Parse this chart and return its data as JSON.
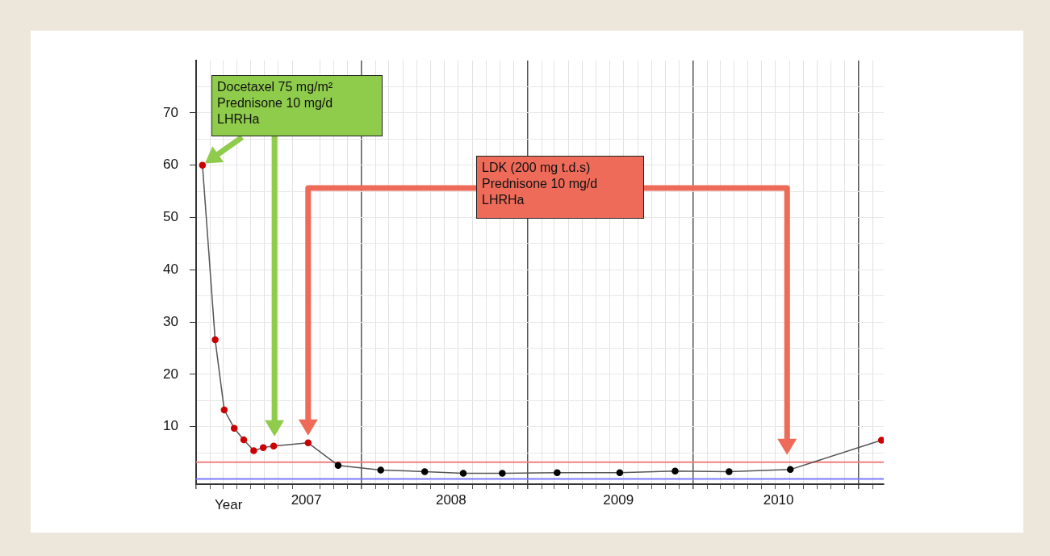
{
  "chart_data": {
    "type": "line",
    "xlabel": "Year",
    "x": [
      "2007-01-15",
      "2007-02-12",
      "2007-03-04",
      "2007-03-26",
      "2007-04-16",
      "2007-05-08",
      "2007-05-29",
      "2007-06-21",
      "2007-09-05",
      "2007-11-10",
      "2008-02-12",
      "2008-05-19",
      "2008-08-12",
      "2008-11-06",
      "2009-03-07",
      "2009-07-23",
      "2009-11-22",
      "2010-03-21",
      "2010-08-03",
      "2011-02-20"
    ],
    "values": [
      60,
      26.6,
      13.2,
      9.7,
      7.5,
      5.4,
      6.0,
      6.3,
      6.9,
      2.6,
      1.7,
      1.4,
      1.1,
      1.1,
      1.2,
      1.2,
      1.5,
      1.4,
      1.8,
      7.4
    ],
    "color": "#555555",
    "colors": [
      "#cc0000",
      "#cc0000",
      "#cc0000",
      "#cc0000",
      "#cc0000",
      "#cc0000",
      "#cc0000",
      "#cc0000",
      "#cc0000",
      "#000000",
      "#000000",
      "#000000",
      "#000000",
      "#000000",
      "#000000",
      "#000000",
      "#000000",
      "#000000",
      "#000000",
      "#cc0000"
    ],
    "marker": "circle",
    "line_style": "solid",
    "grid": true,
    "legend": false,
    "xlim": [
      "2007-01-01",
      "2011-02-25"
    ],
    "xticks": [
      {
        "value": "2007-01-01",
        "label": null
      },
      {
        "value": "2007-02-01",
        "label": null
      },
      {
        "value": "2007-03-01",
        "label": null
      },
      {
        "value": "2007-04-01",
        "label": null
      },
      {
        "value": "2007-05-01",
        "label": null
      },
      {
        "value": "2007-06-01",
        "label": null
      },
      {
        "value": "2007-07-01",
        "label": null
      },
      {
        "value": "2007-08-01",
        "label": null
      },
      {
        "value": "2007-09-01",
        "label": "2007"
      },
      {
        "value": "2007-10-01",
        "label": null
      },
      {
        "value": "2007-11-01",
        "label": null
      },
      {
        "value": "2007-12-01",
        "label": null
      },
      {
        "value": "2008-01-01",
        "label": null
      },
      {
        "value": "2008-02-01",
        "label": null
      },
      {
        "value": "2008-03-01",
        "label": null
      },
      {
        "value": "2008-04-01",
        "label": null
      },
      {
        "value": "2008-05-01",
        "label": null
      },
      {
        "value": "2008-06-01",
        "label": null
      },
      {
        "value": "2008-07-01",
        "label": null
      },
      {
        "value": "2008-07-16",
        "label": "2008"
      },
      {
        "value": "2008-08-01",
        "label": null
      },
      {
        "value": "2008-09-01",
        "label": null
      },
      {
        "value": "2008-10-01",
        "label": null
      },
      {
        "value": "2008-11-01",
        "label": null
      },
      {
        "value": "2008-12-01",
        "label": null
      },
      {
        "value": "2009-01-01",
        "label": null
      },
      {
        "value": "2009-02-01",
        "label": null
      },
      {
        "value": "2009-03-01",
        "label": null
      },
      {
        "value": "2009-04-01",
        "label": null
      },
      {
        "value": "2009-05-01",
        "label": null
      },
      {
        "value": "2009-06-01",
        "label": null
      },
      {
        "value": "2009-07-01",
        "label": null
      },
      {
        "value": "2009-07-20",
        "label": "2009"
      },
      {
        "value": "2009-08-01",
        "label": null
      },
      {
        "value": "2009-09-01",
        "label": null
      },
      {
        "value": "2009-10-01",
        "label": null
      },
      {
        "value": "2009-11-01",
        "label": null
      },
      {
        "value": "2009-12-01",
        "label": null
      },
      {
        "value": "2010-01-01",
        "label": null
      },
      {
        "value": "2010-02-01",
        "label": null
      },
      {
        "value": "2010-03-01",
        "label": null
      },
      {
        "value": "2010-04-01",
        "label": null
      },
      {
        "value": "2010-05-01",
        "label": null
      },
      {
        "value": "2010-06-01",
        "label": null
      },
      {
        "value": "2010-07-01",
        "label": null
      },
      {
        "value": "2010-07-08",
        "label": "2010"
      },
      {
        "value": "2010-08-01",
        "label": null
      },
      {
        "value": "2010-09-01",
        "label": null
      },
      {
        "value": "2010-10-01",
        "label": null
      },
      {
        "value": "2010-11-01",
        "label": null
      },
      {
        "value": "2010-12-01",
        "label": null
      },
      {
        "value": "2011-01-01",
        "label": null
      },
      {
        "value": "2011-02-01",
        "label": null
      }
    ],
    "ylim": [
      -1,
      80
    ],
    "yticks": [
      {
        "value": 0,
        "label": null
      },
      {
        "value": 5,
        "label": null
      },
      10,
      {
        "value": 15,
        "label": null
      },
      20,
      {
        "value": 25,
        "label": null
      },
      30,
      {
        "value": 35,
        "label": null
      },
      40,
      {
        "value": 45,
        "label": null
      },
      50,
      {
        "value": 55,
        "label": null
      },
      60,
      {
        "value": 65,
        "label": null
      },
      70,
      {
        "value": 75,
        "label": null
      }
    ],
    "ref_lines": [
      {
        "axis": "y",
        "value": 3.2,
        "color": "#f08080"
      },
      {
        "axis": "y",
        "value": 0,
        "color": "#7b7bff"
      }
    ],
    "annotations": [
      "Docetaxel 75 mg/m²\nPrednisone 10 mg/d\nLHRHa",
      "LDK (200 mg t.d.s)\nPrednisone 10 mg/d\nLHRHa"
    ]
  }
}
